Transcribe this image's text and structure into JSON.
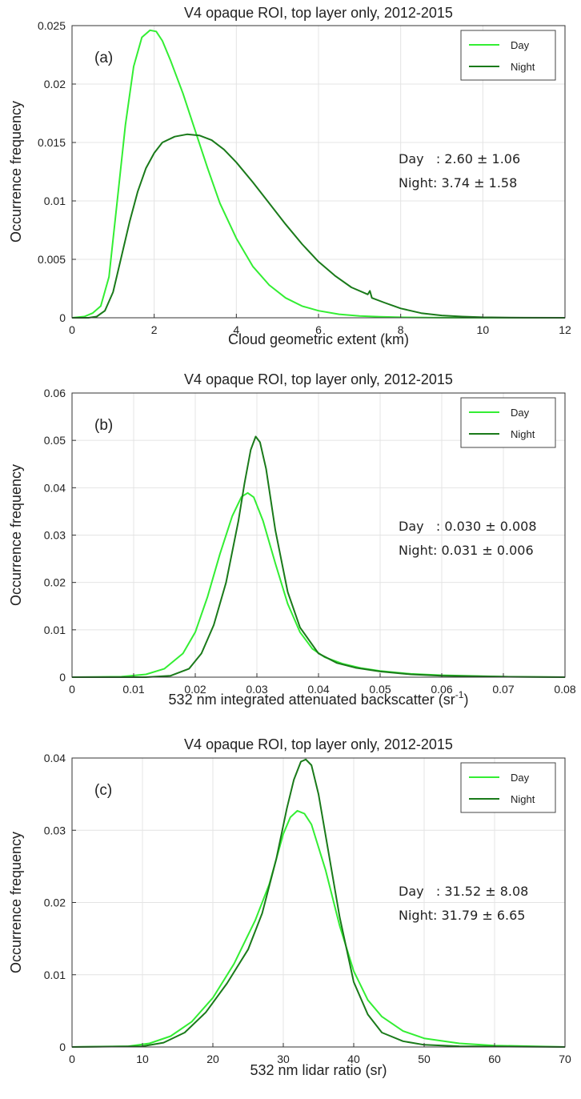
{
  "chart_data": [
    {
      "type": "line",
      "panel_label": "(a)",
      "title": "V4 opaque ROI, top layer only, 2012-2015",
      "xlabel": "Cloud geometric extent (km)",
      "ylabel": "Occurrence frequency",
      "xlim": [
        0,
        12
      ],
      "ylim": [
        0,
        0.025
      ],
      "xticks": [
        0,
        2,
        4,
        6,
        8,
        10,
        12
      ],
      "xtick_labels": [
        "0",
        "2",
        "4",
        "6",
        "8",
        "10",
        "12"
      ],
      "yticks": [
        0,
        0.005,
        0.01,
        0.015,
        0.02,
        0.025
      ],
      "ytick_labels": [
        "0",
        "0.005",
        "0.01",
        "0.015",
        "0.02",
        "0.025"
      ],
      "grid": true,
      "legend": "top-right",
      "stats": [
        "Day   : 2.60 ± 1.06",
        "Night: 3.74 ± 1.58"
      ],
      "series": [
        {
          "name": "Day",
          "color": "#33ee33",
          "x": [
            0,
            0.3,
            0.5,
            0.7,
            0.9,
            1.1,
            1.3,
            1.5,
            1.7,
            1.9,
            2.05,
            2.2,
            2.4,
            2.7,
            3.0,
            3.3,
            3.6,
            4.0,
            4.4,
            4.8,
            5.2,
            5.6,
            6.0,
            6.5,
            7.0,
            7.5,
            8.0,
            9.0,
            10.0,
            12.0
          ],
          "y": [
            0,
            0.0001,
            0.0004,
            0.001,
            0.0035,
            0.01,
            0.0165,
            0.0215,
            0.024,
            0.0246,
            0.0245,
            0.0237,
            0.022,
            0.0192,
            0.016,
            0.0128,
            0.0098,
            0.0068,
            0.0044,
            0.0028,
            0.0017,
            0.001,
            0.0006,
            0.0003,
            0.00015,
            8e-05,
            4e-05,
            1e-05,
            0,
            0
          ]
        },
        {
          "name": "Night",
          "color": "#1a7a1a",
          "x": [
            0,
            0.4,
            0.6,
            0.8,
            1.0,
            1.2,
            1.4,
            1.6,
            1.8,
            2.0,
            2.2,
            2.5,
            2.8,
            3.1,
            3.4,
            3.7,
            4.0,
            4.4,
            4.8,
            5.2,
            5.6,
            6.0,
            6.4,
            6.8,
            7.2,
            7.25,
            7.3,
            7.6,
            8.0,
            8.5,
            9.0,
            9.5,
            10.0,
            11.0,
            12.0
          ],
          "y": [
            0,
            0,
            0.0001,
            0.0006,
            0.0022,
            0.0052,
            0.0082,
            0.0108,
            0.0128,
            0.0141,
            0.015,
            0.0155,
            0.0157,
            0.0156,
            0.0152,
            0.0144,
            0.0133,
            0.0116,
            0.0098,
            0.008,
            0.0063,
            0.0048,
            0.0036,
            0.0026,
            0.002,
            0.0023,
            0.0017,
            0.0013,
            0.0008,
            0.0004,
            0.0002,
            0.0001,
            4e-05,
            1e-05,
            0
          ]
        }
      ]
    },
    {
      "type": "line",
      "panel_label": "(b)",
      "title": "V4 opaque ROI, top layer only, 2012-2015",
      "xlabel": "532 nm integrated attenuated backscatter (sr",
      "xlabel_sup": "-1",
      "xlabel_end": ")",
      "ylabel": "Occurrence frequency",
      "xlim": [
        0,
        0.08
      ],
      "ylim": [
        0,
        0.06
      ],
      "xticks": [
        0,
        0.01,
        0.02,
        0.03,
        0.04,
        0.05,
        0.06,
        0.07,
        0.08
      ],
      "xtick_labels": [
        "0",
        "0.01",
        "0.02",
        "0.03",
        "0.04",
        "0.05",
        "0.06",
        "0.07",
        "0.08"
      ],
      "yticks": [
        0,
        0.01,
        0.02,
        0.03,
        0.04,
        0.05,
        0.06
      ],
      "ytick_labels": [
        "0",
        "0.01",
        "0.02",
        "0.03",
        "0.04",
        "0.05",
        "0.06"
      ],
      "grid": true,
      "legend": "top-right",
      "stats": [
        "Day   : 0.030 ± 0.008",
        "Night: 0.031 ± 0.006"
      ],
      "series": [
        {
          "name": "Day",
          "color": "#33ee33",
          "x": [
            0,
            0.008,
            0.012,
            0.015,
            0.018,
            0.02,
            0.022,
            0.024,
            0.026,
            0.0275,
            0.0285,
            0.0295,
            0.031,
            0.033,
            0.035,
            0.037,
            0.039,
            0.041,
            0.044,
            0.047,
            0.05,
            0.055,
            0.06,
            0.07,
            0.08
          ],
          "y": [
            0,
            0.0001,
            0.0006,
            0.0018,
            0.005,
            0.0095,
            0.017,
            0.026,
            0.034,
            0.0381,
            0.0389,
            0.038,
            0.033,
            0.024,
            0.0155,
            0.0095,
            0.006,
            0.0042,
            0.0028,
            0.0019,
            0.0013,
            0.0007,
            0.0004,
            0.0001,
            0
          ]
        },
        {
          "name": "Night",
          "color": "#1a7a1a",
          "x": [
            0,
            0.012,
            0.016,
            0.019,
            0.021,
            0.023,
            0.025,
            0.027,
            0.028,
            0.029,
            0.0298,
            0.0305,
            0.0315,
            0.033,
            0.035,
            0.037,
            0.04,
            0.043,
            0.046,
            0.05,
            0.055,
            0.06,
            0.07,
            0.08
          ],
          "y": [
            0,
            0,
            0.0003,
            0.0018,
            0.005,
            0.011,
            0.02,
            0.033,
            0.041,
            0.048,
            0.0508,
            0.0496,
            0.044,
            0.031,
            0.018,
            0.0105,
            0.005,
            0.003,
            0.002,
            0.0012,
            0.0006,
            0.0003,
            0.0001,
            0
          ]
        }
      ]
    },
    {
      "type": "line",
      "panel_label": "(c)",
      "title": "V4 opaque ROI, top layer only, 2012-2015",
      "xlabel": "532 nm lidar ratio (sr)",
      "ylabel": "Occurrence frequency",
      "xlim": [
        0,
        70
      ],
      "ylim": [
        0,
        0.04
      ],
      "xticks": [
        0,
        10,
        20,
        30,
        40,
        50,
        60,
        70
      ],
      "xtick_labels": [
        "0",
        "10",
        "20",
        "30",
        "40",
        "50",
        "60",
        "70"
      ],
      "yticks": [
        0,
        0.01,
        0.02,
        0.03,
        0.04
      ],
      "ytick_labels": [
        "0",
        "0.01",
        "0.02",
        "0.03",
        "0.04"
      ],
      "grid": true,
      "legend": "top-right",
      "stats": [
        "Day   : 31.52 ± 8.08",
        "Night: 31.79 ± 6.65"
      ],
      "series": [
        {
          "name": "Day",
          "color": "#33ee33",
          "x": [
            0,
            8,
            11,
            14,
            17,
            20,
            23,
            26,
            28,
            30,
            31,
            32,
            33,
            34,
            36,
            38,
            40,
            42,
            44,
            47,
            50,
            55,
            60,
            70
          ],
          "y": [
            0,
            0.0001,
            0.0005,
            0.0015,
            0.0035,
            0.0068,
            0.0115,
            0.0175,
            0.0225,
            0.0295,
            0.0318,
            0.0327,
            0.0323,
            0.0308,
            0.0245,
            0.0168,
            0.0105,
            0.0065,
            0.0042,
            0.0022,
            0.0012,
            0.0005,
            0.0002,
            0
          ]
        },
        {
          "name": "Night",
          "color": "#1a7a1a",
          "x": [
            0,
            10,
            13,
            16,
            19,
            22,
            25,
            27,
            29,
            30.5,
            31.5,
            32.5,
            33.2,
            34,
            35,
            36.5,
            38,
            40,
            42,
            44,
            47,
            50,
            55,
            70
          ],
          "y": [
            0,
            0.0001,
            0.0006,
            0.002,
            0.0048,
            0.0088,
            0.0135,
            0.0185,
            0.026,
            0.033,
            0.037,
            0.0395,
            0.0398,
            0.039,
            0.035,
            0.0265,
            0.018,
            0.009,
            0.0045,
            0.002,
            0.0008,
            0.0003,
            0.0001,
            0
          ]
        }
      ]
    }
  ]
}
